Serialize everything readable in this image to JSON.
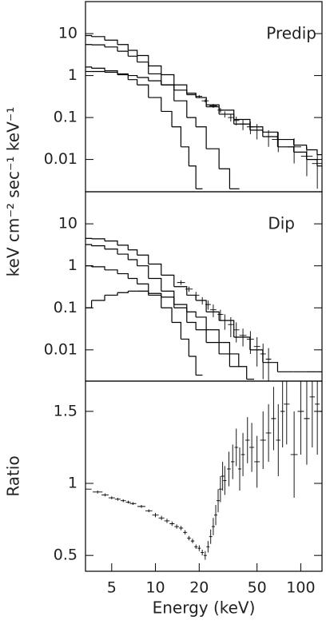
{
  "chart_data": [
    {
      "type": "line",
      "annotation": "Predip",
      "ylabel": "keV cm⁻² sec⁻¹ keV⁻¹",
      "xlog": true,
      "ylog": true,
      "xlim": [
        3.3,
        140
      ],
      "ylim": [
        0.0017,
        58
      ],
      "yticks": [
        0.01,
        0.1,
        1,
        10
      ],
      "series": [
        {
          "style": "steps",
          "color": "#000",
          "x": [
            3.3,
            4,
            5,
            6,
            7,
            8,
            10,
            12,
            15,
            18,
            20,
            25,
            30,
            40,
            50,
            60,
            80,
            100,
            120,
            140
          ],
          "values": [
            9,
            8.5,
            7,
            5.5,
            4,
            3,
            1.7,
            1.05,
            0.6,
            0.38,
            0.3,
            0.18,
            0.12,
            0.07,
            0.05,
            0.035,
            0.02,
            0.015,
            0.01,
            0.007
          ]
        },
        {
          "style": "steps",
          "color": "#000",
          "x": [
            3.3,
            4,
            5,
            6,
            7,
            8,
            10,
            12,
            15,
            18,
            20,
            25,
            30,
            35
          ],
          "values": [
            5.5,
            5.4,
            4.8,
            3.8,
            2.9,
            2.1,
            1.1,
            0.6,
            0.25,
            0.1,
            0.06,
            0.018,
            0.006,
            0.002
          ]
        },
        {
          "style": "steps",
          "color": "#000",
          "x": [
            3.3,
            4,
            5,
            6,
            7,
            8,
            10,
            12,
            14,
            16,
            18,
            20
          ],
          "values": [
            1.6,
            1.5,
            1.3,
            1.05,
            0.8,
            0.6,
            0.3,
            0.14,
            0.06,
            0.02,
            0.007,
            0.002
          ]
        },
        {
          "style": "steps",
          "color": "#000",
          "x": [
            3.3,
            4,
            5,
            6,
            7,
            8,
            10,
            12,
            15,
            18,
            20,
            25,
            30,
            40,
            50,
            60,
            80,
            100,
            120,
            140
          ],
          "values": [
            1.25,
            1.25,
            1.2,
            1.1,
            1.0,
            0.9,
            0.75,
            0.6,
            0.45,
            0.35,
            0.3,
            0.2,
            0.15,
            0.09,
            0.06,
            0.045,
            0.03,
            0.022,
            0.017,
            0.013
          ]
        },
        {
          "style": "points",
          "color": "#000",
          "x": [
            20,
            22,
            25,
            28,
            30,
            33,
            36,
            40,
            45,
            50,
            60,
            70,
            90,
            110,
            130
          ],
          "values": [
            0.32,
            0.25,
            0.19,
            0.15,
            0.12,
            0.1,
            0.085,
            0.07,
            0.06,
            0.05,
            0.035,
            0.03,
            0.02,
            0.012,
            0.008
          ],
          "errors": [
            0.02,
            0.02,
            0.02,
            0.02,
            0.02,
            0.02,
            0.02,
            0.02,
            0.02,
            0.02,
            0.015,
            0.015,
            0.012,
            0.008,
            0.006
          ]
        }
      ]
    },
    {
      "type": "line",
      "annotation": "Dip",
      "xlog": true,
      "ylog": true,
      "xlim": [
        3.3,
        140
      ],
      "ylim": [
        0.0018,
        58
      ],
      "yticks": [
        0.01,
        0.1,
        1,
        10
      ],
      "series": [
        {
          "style": "steps",
          "color": "#000",
          "x": [
            3.3,
            4,
            5,
            6,
            7,
            8,
            10,
            12,
            15,
            18,
            20,
            25,
            30,
            40,
            50,
            60,
            80,
            100,
            120,
            140
          ],
          "values": [
            4.5,
            4.4,
            3.9,
            3.1,
            2.4,
            1.8,
            1.1,
            0.6,
            0.32,
            0.2,
            0.15,
            0.08,
            0.05,
            0.02,
            0.01,
            0.005,
            0.003,
            0.003,
            0.003,
            0.003
          ]
        },
        {
          "style": "steps",
          "color": "#000",
          "x": [
            3.3,
            4,
            5,
            6,
            7,
            8,
            10,
            12,
            15,
            18,
            20,
            25,
            30,
            35
          ],
          "values": [
            3.2,
            3,
            2.5,
            1.9,
            1.4,
            1,
            0.5,
            0.25,
            0.1,
            0.045,
            0.03,
            0.015,
            0.008,
            0.004
          ]
        },
        {
          "style": "steps",
          "color": "#000",
          "x": [
            3.3,
            4,
            5,
            6,
            7,
            8,
            10,
            12,
            14,
            16,
            18,
            20
          ],
          "values": [
            1,
            0.95,
            0.8,
            0.65,
            0.5,
            0.37,
            0.2,
            0.1,
            0.045,
            0.018,
            0.007,
            0.0025
          ]
        },
        {
          "style": "steps",
          "color": "#000",
          "x": [
            3.3,
            4,
            5,
            6,
            7,
            8,
            10,
            12,
            15,
            18,
            20,
            25,
            30,
            35,
            40,
            45
          ],
          "values": [
            0.1,
            0.15,
            0.2,
            0.23,
            0.25,
            0.25,
            0.22,
            0.18,
            0.12,
            0.08,
            0.06,
            0.03,
            0.015,
            0.008,
            0.004,
            0.002
          ]
        },
        {
          "style": "points",
          "color": "#000",
          "x": [
            15,
            17,
            19,
            21,
            23,
            25,
            28,
            30,
            33,
            36,
            40,
            45,
            50,
            55,
            60
          ],
          "values": [
            0.4,
            0.28,
            0.2,
            0.15,
            0.12,
            0.09,
            0.07,
            0.05,
            0.04,
            0.03,
            0.022,
            0.018,
            0.012,
            0.008,
            0.006
          ],
          "errors": [
            0.05,
            0.04,
            0.04,
            0.03,
            0.03,
            0.03,
            0.02,
            0.02,
            0.02,
            0.015,
            0.01,
            0.01,
            0.008,
            0.006,
            0.005
          ]
        }
      ]
    },
    {
      "type": "line",
      "ylabel": "Ratio",
      "xlabel": "Energy (keV)",
      "xlog": true,
      "ylog": false,
      "xlim": [
        3.3,
        140
      ],
      "ylim": [
        0.39,
        1.71
      ],
      "yticks": [
        0.5,
        1,
        1.5
      ],
      "xticks": [
        5,
        10,
        20,
        50,
        100
      ],
      "series": [
        {
          "style": "points",
          "color": "#000",
          "x": [
            3.3,
            4,
            4.5,
            5,
            5.5,
            6,
            6.5,
            7,
            8,
            9,
            10,
            11,
            12,
            13,
            14,
            15,
            16,
            17,
            18,
            19,
            20,
            21,
            22,
            23,
            24,
            25,
            26,
            27,
            28,
            29,
            30,
            32,
            34,
            36,
            38,
            40,
            43,
            46,
            50,
            55,
            60,
            65,
            70,
            75,
            80,
            90,
            100,
            110,
            120,
            130,
            140
          ],
          "values": [
            0.96,
            0.94,
            0.92,
            0.9,
            0.89,
            0.88,
            0.87,
            0.86,
            0.84,
            0.81,
            0.78,
            0.76,
            0.74,
            0.72,
            0.7,
            0.69,
            0.66,
            0.62,
            0.6,
            0.56,
            0.55,
            0.52,
            0.5,
            0.56,
            0.63,
            0.7,
            0.78,
            0.88,
            0.96,
            1.05,
            1.02,
            1.1,
            1.15,
            1.25,
            1.1,
            1.2,
            1.3,
            1.25,
            1.15,
            1.3,
            1.35,
            1.45,
            1.3,
            1.5,
            1.55,
            1.2,
            1.5,
            1.45,
            1.6,
            1.55,
            1.5
          ],
          "errors": [
            0.01,
            0.01,
            0.01,
            0.01,
            0.01,
            0.01,
            0.01,
            0.01,
            0.01,
            0.01,
            0.015,
            0.015,
            0.015,
            0.015,
            0.015,
            0.015,
            0.015,
            0.015,
            0.015,
            0.015,
            0.02,
            0.02,
            0.03,
            0.04,
            0.05,
            0.06,
            0.07,
            0.08,
            0.09,
            0.1,
            0.1,
            0.12,
            0.12,
            0.13,
            0.15,
            0.15,
            0.16,
            0.17,
            0.18,
            0.2,
            0.2,
            0.22,
            0.25,
            0.25,
            0.28,
            0.3,
            0.3,
            0.32,
            0.35,
            0.35,
            0.4
          ]
        }
      ]
    }
  ]
}
